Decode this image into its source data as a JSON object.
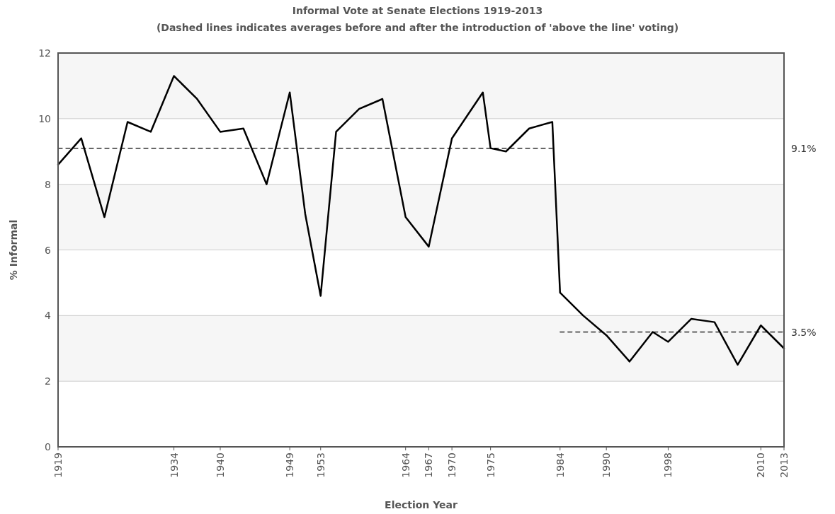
{
  "chart_data": {
    "type": "line",
    "title": "Informal Vote at Senate Elections 1919-2013",
    "subtitle": "(Dashed lines indicates averages before and after the introduction of 'above the line' voting)",
    "xlabel": "Election Year",
    "ylabel": "% Informal",
    "x": [
      1919,
      1922,
      1925,
      1928,
      1931,
      1934,
      1937,
      1940,
      1943,
      1946,
      1949,
      1951,
      1953,
      1955,
      1958,
      1961,
      1964,
      1967,
      1970,
      1974,
      1975,
      1977,
      1980,
      1983,
      1984,
      1987,
      1990,
      1993,
      1996,
      1998,
      2001,
      2004,
      2007,
      2010,
      2013
    ],
    "series": [
      {
        "color": "#000000",
        "line_style": "solid",
        "values": [
          8.6,
          9.4,
          7.0,
          9.9,
          9.6,
          11.3,
          10.6,
          9.6,
          9.7,
          8.0,
          10.8,
          7.1,
          4.6,
          9.6,
          10.3,
          10.6,
          7.0,
          6.1,
          9.4,
          10.8,
          9.1,
          9.0,
          9.7,
          9.9,
          4.7,
          4.0,
          3.4,
          2.6,
          3.5,
          3.2,
          3.9,
          3.8,
          2.5,
          3.7,
          3.0
        ]
      },
      {
        "color": "#000000",
        "line_style": "dashed",
        "x": [
          1919,
          1983
        ],
        "values": [
          9.1,
          9.1
        ]
      },
      {
        "color": "#000000",
        "line_style": "dashed",
        "x": [
          1984,
          2013
        ],
        "values": [
          3.5,
          3.5
        ]
      }
    ],
    "annotations": [
      "9.1%",
      "3.5%"
    ],
    "xlim": [
      1919,
      2013
    ],
    "xticks": [
      1919,
      1934,
      1940,
      1949,
      1953,
      1964,
      1967,
      1970,
      1975,
      1984,
      1990,
      1998,
      2010,
      2013
    ],
    "ylim": [
      0,
      12
    ],
    "yticks": [
      0,
      2,
      4,
      6,
      8,
      10,
      12
    ],
    "grid": "y",
    "marker": "none"
  }
}
